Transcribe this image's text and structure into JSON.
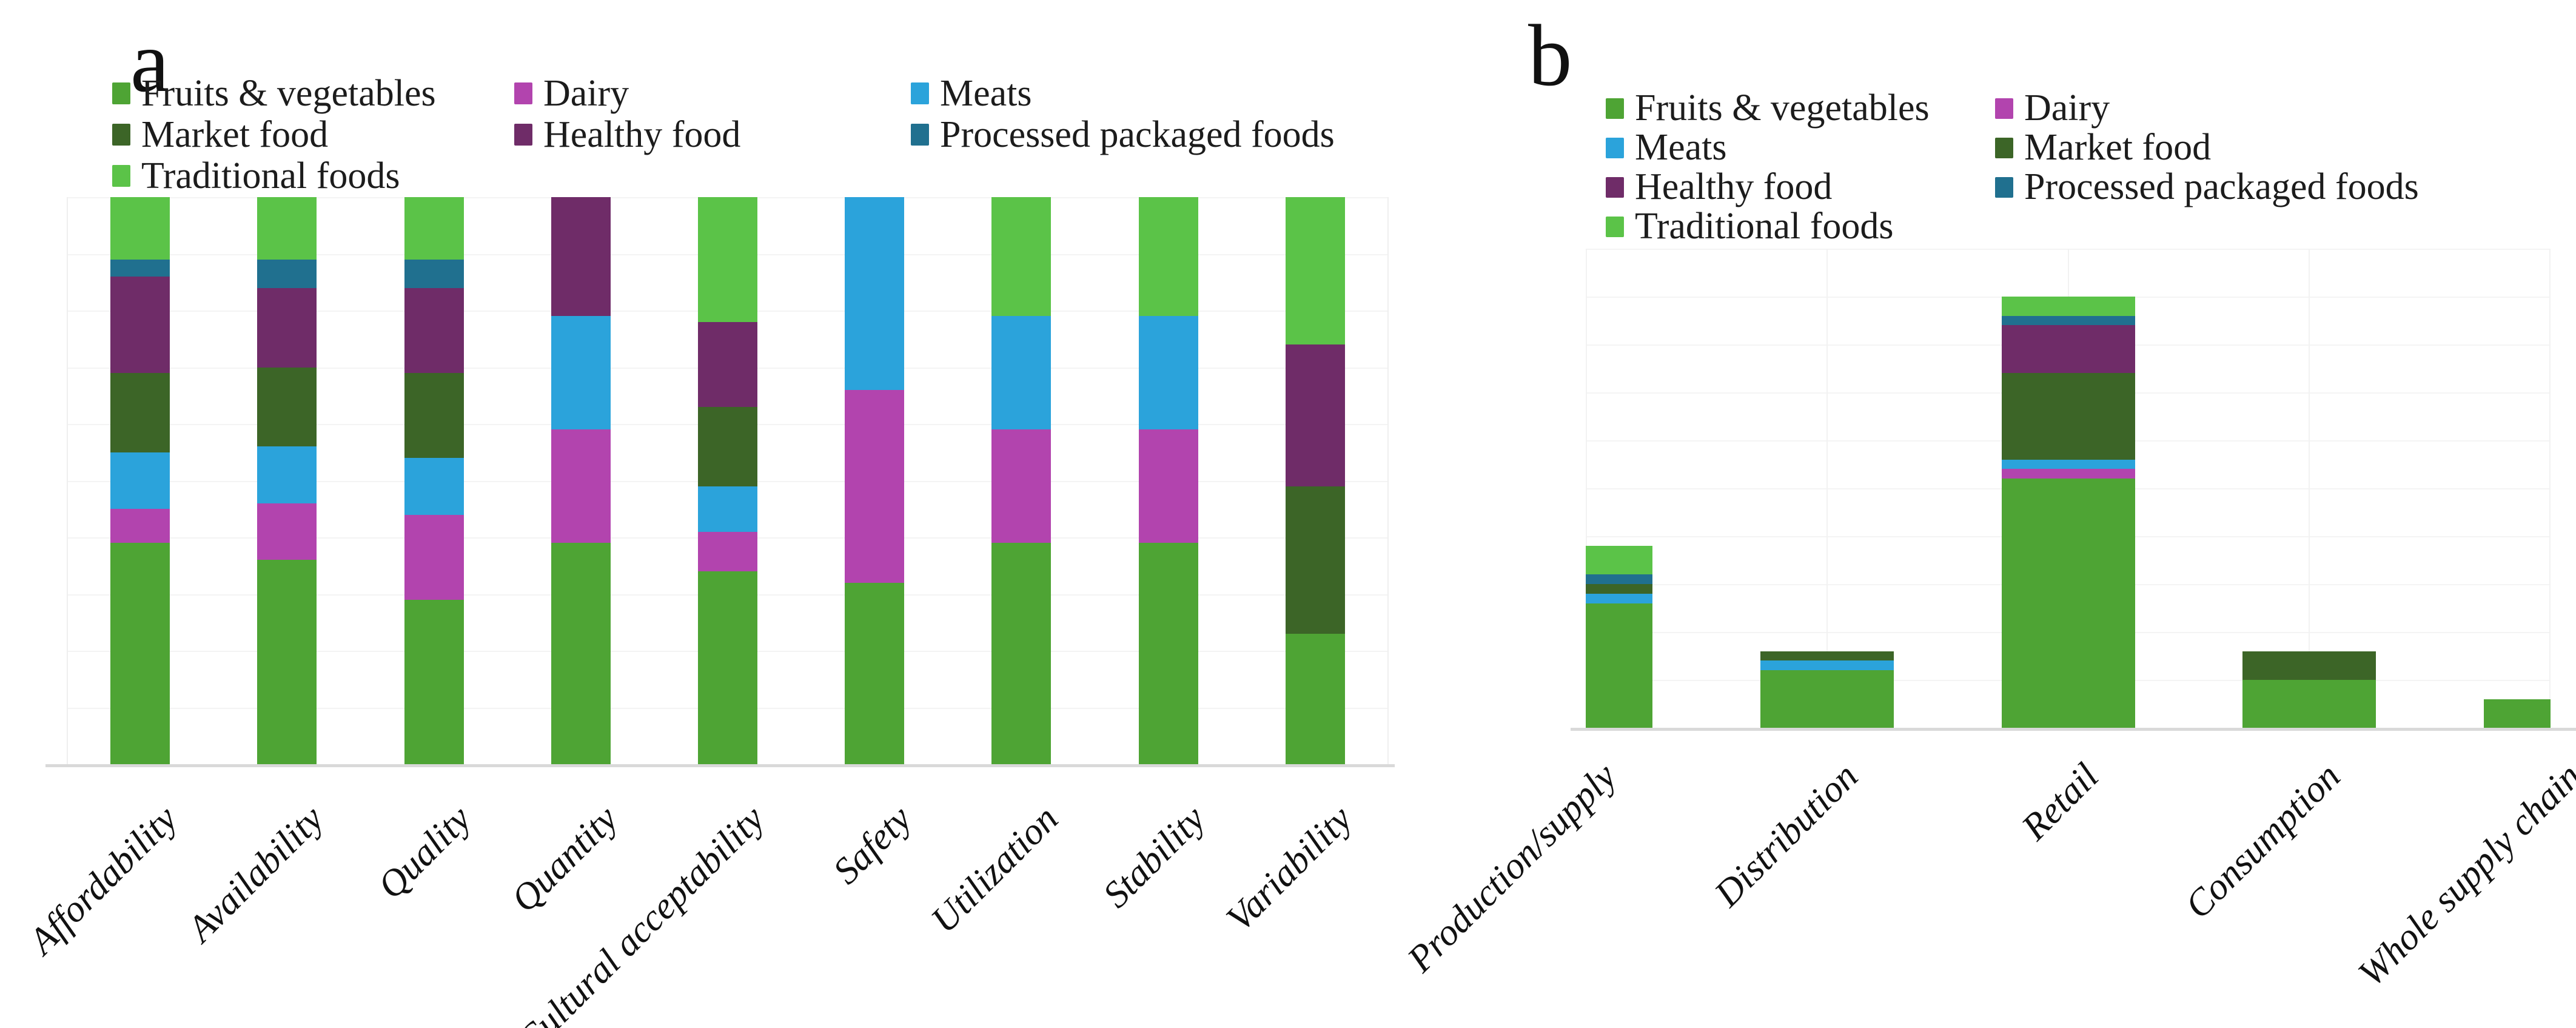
{
  "figure": {
    "panels": [
      {
        "title": "a"
      },
      {
        "title": "b"
      }
    ]
  },
  "series_palette": {
    "fv": {
      "label": "Fruits & vegetables",
      "color": "#4EA434"
    },
    "dairy": {
      "label": "Dairy",
      "color": "#B244AE"
    },
    "meats": {
      "label": "Meats",
      "color": "#2BA3DB"
    },
    "market": {
      "label": "Market food",
      "color": "#3C6527"
    },
    "healthy": {
      "label": "Healthy food",
      "color": "#6F2C68"
    },
    "processed": {
      "label": "Processed packaged foods",
      "color": "#20708F"
    },
    "traditional": {
      "label": "Traditional foods",
      "color": "#5BC348"
    }
  },
  "chart_data": [
    {
      "type": "bar",
      "panel": "a",
      "stacked": true,
      "percent_stacked": true,
      "title": "",
      "xlabel": "",
      "ylabel": "",
      "ylim": [
        0,
        100
      ],
      "gridline_step": 10,
      "grid": true,
      "axis_tick_labels_visible": false,
      "legend_position": "top-left",
      "legend_rows": [
        [
          "fv",
          "dairy",
          "meats"
        ],
        [
          "market",
          "healthy",
          "processed"
        ],
        [
          "traditional"
        ]
      ],
      "stack_order": [
        "fv",
        "dairy",
        "meats",
        "market",
        "healthy",
        "processed",
        "traditional"
      ],
      "categories": [
        "Affordability",
        "Availability",
        "Quality",
        "Quantity",
        "Cultural acceptability",
        "Safety",
        "Utilization",
        "Stability",
        "Variability"
      ],
      "series": [
        {
          "key": "fv",
          "name": "Fruits & vegetables",
          "values": [
            39,
            36,
            29,
            39,
            34,
            32,
            39,
            39,
            23
          ]
        },
        {
          "key": "dairy",
          "name": "Dairy",
          "values": [
            6,
            10,
            15,
            20,
            7,
            34,
            20,
            20,
            0
          ]
        },
        {
          "key": "meats",
          "name": "Meats",
          "values": [
            10,
            10,
            10,
            20,
            8,
            34,
            20,
            20,
            0
          ]
        },
        {
          "key": "market",
          "name": "Market food",
          "values": [
            14,
            14,
            15,
            0,
            14,
            0,
            0,
            0,
            26
          ]
        },
        {
          "key": "healthy",
          "name": "Healthy food",
          "values": [
            17,
            14,
            15,
            21,
            15,
            0,
            0,
            0,
            25
          ]
        },
        {
          "key": "processed",
          "name": "Processed packaged foods",
          "values": [
            3,
            5,
            5,
            0,
            0,
            0,
            0,
            0,
            0
          ]
        },
        {
          "key": "traditional",
          "name": "Traditional foods",
          "values": [
            11,
            11,
            11,
            0,
            22,
            0,
            21,
            21,
            26
          ]
        }
      ]
    },
    {
      "type": "bar",
      "panel": "b",
      "stacked": true,
      "percent_stacked": false,
      "title": "",
      "xlabel": "",
      "ylabel": "",
      "ylim": [
        0,
        50
      ],
      "gridline_step": 5,
      "grid": true,
      "axis_tick_labels_visible": false,
      "legend_position": "top-left",
      "legend_rows": [
        [
          "fv",
          "dairy"
        ],
        [
          "meats",
          "market"
        ],
        [
          "healthy",
          "processed"
        ],
        [
          "traditional"
        ]
      ],
      "stack_order": [
        "fv",
        "dairy",
        "meats",
        "market",
        "healthy",
        "processed",
        "traditional"
      ],
      "categories": [
        "Production/supply",
        "Distribution",
        "Retail",
        "Consumption",
        "Whole supply chain"
      ],
      "series": [
        {
          "key": "fv",
          "name": "Fruits & vegetables",
          "values": [
            13,
            6,
            26,
            5,
            3
          ]
        },
        {
          "key": "dairy",
          "name": "Dairy",
          "values": [
            0,
            0,
            1,
            0,
            0
          ]
        },
        {
          "key": "meats",
          "name": "Meats",
          "values": [
            1,
            1,
            1,
            0,
            0
          ]
        },
        {
          "key": "market",
          "name": "Market food",
          "values": [
            1,
            1,
            9,
            3,
            0
          ]
        },
        {
          "key": "healthy",
          "name": "Healthy food",
          "values": [
            0,
            0,
            5,
            0,
            0
          ]
        },
        {
          "key": "processed",
          "name": "Processed packaged foods",
          "values": [
            1,
            0,
            1,
            0,
            0
          ]
        },
        {
          "key": "traditional",
          "name": "Traditional foods",
          "values": [
            3,
            0,
            2,
            0,
            0
          ]
        }
      ]
    }
  ]
}
